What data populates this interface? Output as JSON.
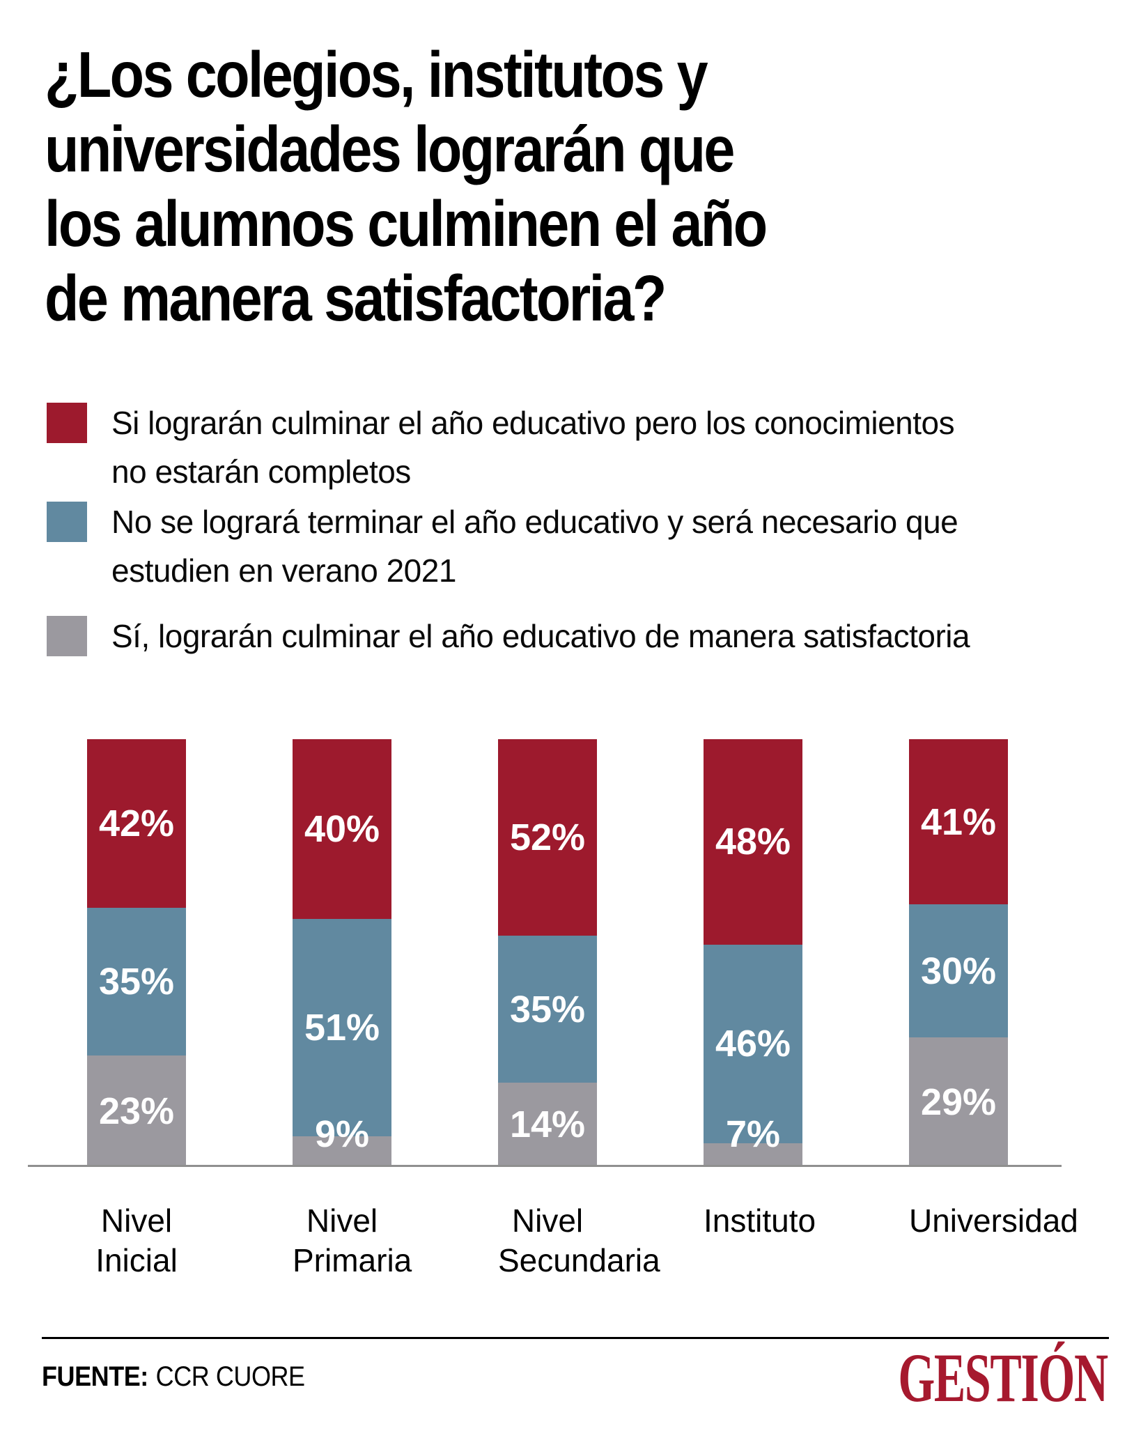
{
  "header": {
    "title_lines": [
      "¿Los colegios, institutos y",
      "universidades lograrán que",
      "los alumnos culminen el año",
      "de manera satisfactoria?"
    ]
  },
  "legend": {
    "items": [
      {
        "lines": [
          "Si lograrán culminar el año educativo pero los conocimientos",
          "no estarán completos"
        ]
      },
      {
        "lines": [
          "No se logrará terminar el año educativo y será necesario que",
          "estudien en verano 2021"
        ]
      },
      {
        "lines": [
          "Sí, lograrán culminar el año educativo de manera satisfactoria"
        ]
      }
    ]
  },
  "chart_data": {
    "type": "bar",
    "subtype": "stacked",
    "unit": "%",
    "title": "¿Los colegios, institutos y universidades lograrán que los alumnos culminen el año de manera satisfactoria?",
    "categories": [
      "Nivel Inicial",
      "Nivel Primaria",
      "Nivel Secundaria",
      "Instituto",
      "Universidad"
    ],
    "category_label_lines": [
      [
        "Nivel",
        "Inicial"
      ],
      [
        "Nivel",
        "Primaria"
      ],
      [
        "Nivel",
        "Secundaria"
      ],
      [
        "Instituto"
      ],
      [
        "Universidad"
      ]
    ],
    "series": [
      {
        "name": "Si lograrán culminar el año educativo pero los conocimientos no estarán completos",
        "color": "#9d1a2d",
        "values": [
          42,
          40,
          52,
          48,
          41
        ]
      },
      {
        "name": "No se logrará terminar el año educativo y será necesario que estudien en verano 2021",
        "color": "#6189a0",
        "values": [
          35,
          51,
          35,
          46,
          30
        ]
      },
      {
        "name": "Sí, lograrán culminar el año educativo de manera satisfactoria",
        "color": "#9b999f",
        "values": [
          23,
          9,
          14,
          7,
          29
        ]
      }
    ],
    "legend_position": "top-left",
    "gridlines": false,
    "ylim": [
      0,
      100
    ]
  },
  "footer": {
    "source_label": "FUENTE:",
    "source_value": "CCR CUORE",
    "brand": "GESTIÓN",
    "brand_color": "#a6192e"
  }
}
